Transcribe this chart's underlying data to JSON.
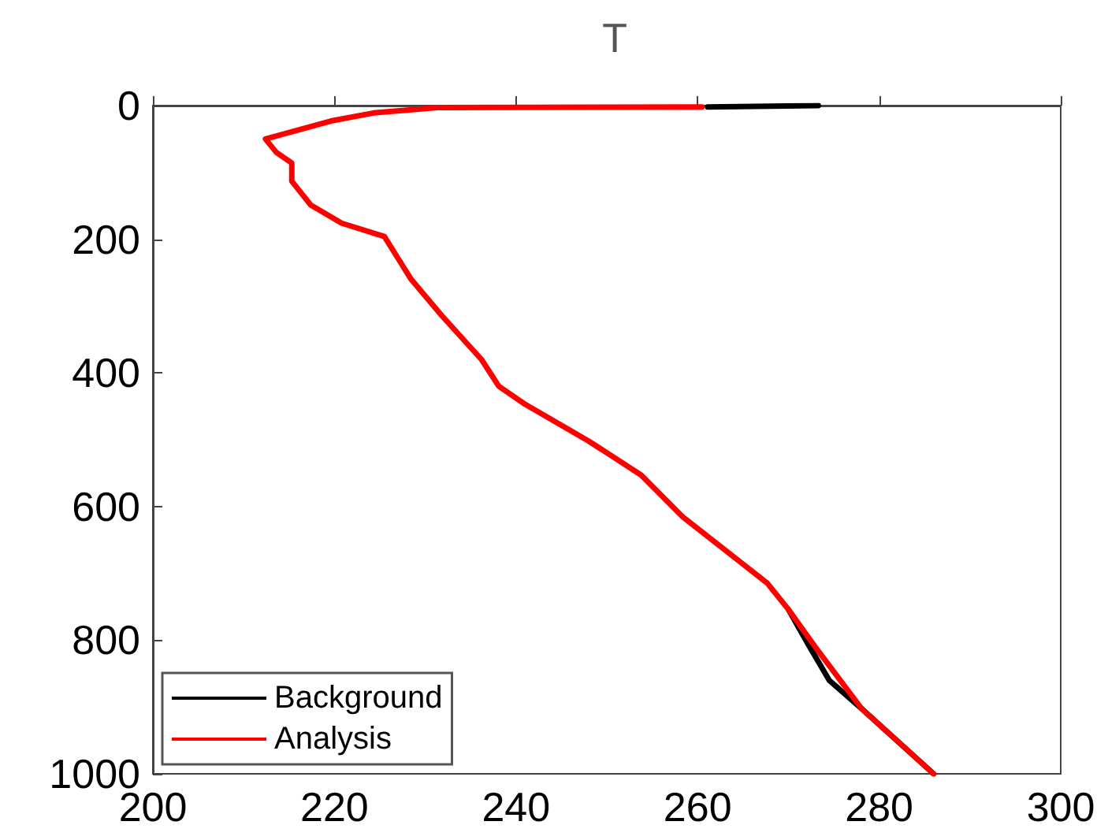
{
  "chart_data": {
    "type": "line",
    "title": "T",
    "series": [
      {
        "name": "Background",
        "color": "#000000",
        "x": [
          273.3,
          261.1,
          null,
          270.0,
          272.3,
          274.5,
          278.1,
          286.0
        ],
        "values": [
          0,
          2,
          null,
          754,
          809,
          860,
          903,
          1000
        ]
      },
      {
        "name": "Analysis",
        "color": "#ff0000",
        "x": [
          260.5,
          231.3,
          224.3,
          219.6,
          212.4,
          213.6,
          215.3,
          215.3,
          217.4,
          220.8,
          225.5,
          228.4,
          231.8,
          236.2,
          238.1,
          241.0,
          248.0,
          253.8,
          258.4,
          267.7,
          270.0,
          272.9,
          278.1,
          286.0
        ],
        "values": [
          2,
          3,
          11,
          23,
          50,
          70,
          86,
          113,
          149,
          176,
          196,
          259,
          314,
          380,
          420,
          447,
          502,
          553,
          616,
          715,
          754,
          809,
          903,
          1000
        ]
      }
    ],
    "xlim": [
      200,
      300
    ],
    "xticks": [
      200,
      220,
      240,
      260,
      280,
      300
    ],
    "ylim": [
      1000,
      0
    ],
    "yticks": [
      0,
      200,
      400,
      600,
      800,
      1000
    ],
    "legend": "bottom left",
    "marker": "none",
    "line_style": "solid"
  }
}
